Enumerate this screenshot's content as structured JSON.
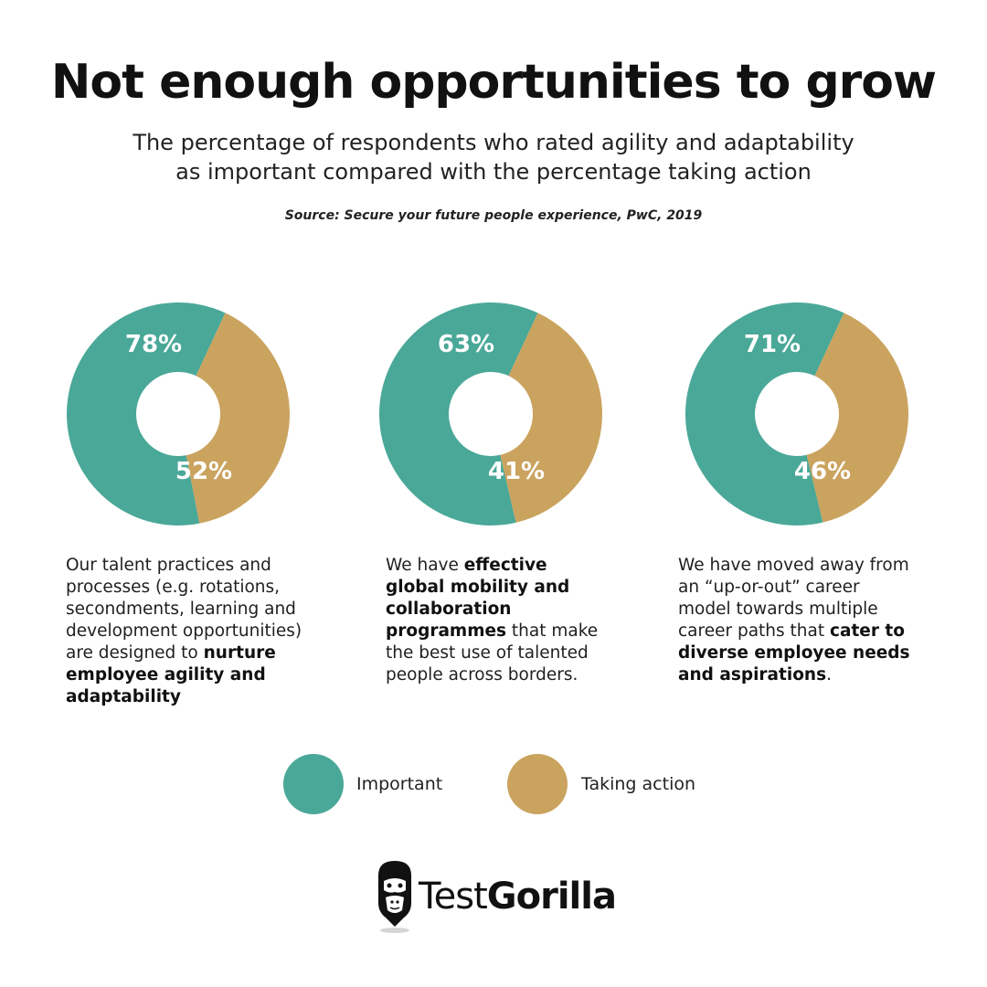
{
  "header": {
    "title": "Not enough opportunities to grow",
    "subtitle_line1": "The percentage of respondents who rated agility and adaptability",
    "subtitle_line2": "as important compared with the percentage taking action",
    "source": "Source: Secure your future people experience, PwC, 2019"
  },
  "colors": {
    "important": "#4aa898",
    "taking_action": "#caa35f",
    "background": "#ffffff"
  },
  "chart_data": [
    {
      "type": "pie",
      "variant": "donut",
      "series": [
        {
          "name": "Important",
          "value": 78,
          "label": "78%"
        },
        {
          "name": "Taking action",
          "value": 52,
          "label": "52%"
        }
      ]
    },
    {
      "type": "pie",
      "variant": "donut",
      "series": [
        {
          "name": "Important",
          "value": 63,
          "label": "63%"
        },
        {
          "name": "Taking action",
          "value": 41,
          "label": "41%"
        }
      ]
    },
    {
      "type": "pie",
      "variant": "donut",
      "series": [
        {
          "name": "Important",
          "value": 71,
          "label": "71%"
        },
        {
          "name": "Taking action",
          "value": 46,
          "label": "46%"
        }
      ]
    }
  ],
  "descriptions": [
    {
      "pre": "Our talent practices and processes (e.g. rotations, secondments, learning and development opportunities) are designed to ",
      "bold": "nurture employee agility and adaptability",
      "post": ""
    },
    {
      "pre": "We have ",
      "bold": "effective global mobility and collaboration programmes",
      "post": " that make the best use of talented people across borders."
    },
    {
      "pre": "We have moved away from an “up-or-out” career model towards multiple career paths that ",
      "bold": "cater to diverse employee needs and aspirations",
      "post": "."
    }
  ],
  "legend": {
    "important": "Important",
    "taking_action": "Taking action"
  },
  "brand": {
    "name_regular": "Test",
    "name_bold": "Gorilla"
  }
}
